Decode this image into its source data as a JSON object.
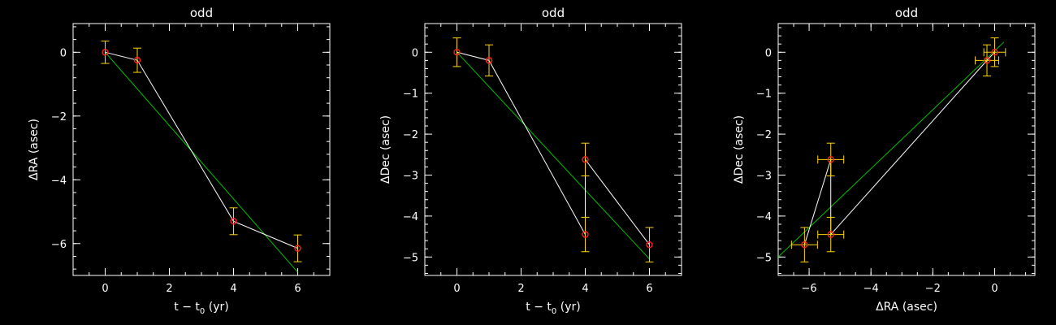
{
  "colors": {
    "background": "#000000",
    "axes": "#ffffff",
    "data_line": "#ffffff",
    "fit_line": "#00c000",
    "errorbar": "#ffd700",
    "marker": "#ff2020"
  },
  "chart_data": [
    {
      "type": "scatter",
      "title": "odd",
      "xlabel": "t − t",
      "xlabel_sub": "0",
      "xlabel_unit": " (yr)",
      "ylabel": "ΔRA (asec)",
      "xlim": [
        -1,
        7
      ],
      "ylim": [
        -7,
        0.9
      ],
      "xticks": [
        0,
        2,
        4,
        6
      ],
      "yticks": [
        0,
        -2,
        -4,
        -6
      ],
      "grid": false,
      "points": [
        {
          "x": 0,
          "y": 0.0,
          "yerr": 0.35
        },
        {
          "x": 1,
          "y": -0.25,
          "yerr": 0.38
        },
        {
          "x": 4,
          "y": -5.3,
          "yerr": 0.42
        },
        {
          "x": 6,
          "y": -6.15,
          "yerr": 0.42
        }
      ],
      "fit": {
        "x": [
          0,
          6
        ],
        "y": [
          0.0,
          -6.9
        ]
      }
    },
    {
      "type": "scatter",
      "title": "odd",
      "xlabel": "t − t",
      "xlabel_sub": "0",
      "xlabel_unit": " (yr)",
      "ylabel": "ΔDec (asec)",
      "xlim": [
        -1,
        7
      ],
      "ylim": [
        -5.45,
        0.7
      ],
      "xticks": [
        0,
        2,
        4,
        6
      ],
      "yticks": [
        0,
        -1,
        -2,
        -3,
        -4,
        -5
      ],
      "grid": false,
      "points": [
        {
          "x": 0,
          "y": 0.0,
          "yerr": 0.35
        },
        {
          "x": 1,
          "y": -0.2,
          "yerr": 0.38
        },
        {
          "x": 4,
          "y": -4.45,
          "yerr": 0.42
        },
        {
          "x": 4,
          "y": -2.62,
          "yerr": 0.4
        },
        {
          "x": 6,
          "y": -4.7,
          "yerr": 0.42
        }
      ],
      "fit": {
        "x": [
          0,
          6
        ],
        "y": [
          0.0,
          -5.05
        ]
      }
    },
    {
      "type": "scatter",
      "title": "odd",
      "xlabel": "ΔRA (asec)",
      "ylabel": "ΔDec (asec)",
      "xlim": [
        -7,
        1.3
      ],
      "ylim": [
        -5.45,
        0.7
      ],
      "xticks": [
        -6,
        -4,
        -2,
        0
      ],
      "yticks": [
        0,
        -1,
        -2,
        -3,
        -4,
        -5
      ],
      "grid": false,
      "points": [
        {
          "x": 0.0,
          "y": 0.0,
          "xerr": 0.35,
          "yerr": 0.35
        },
        {
          "x": -0.25,
          "y": -0.2,
          "xerr": 0.38,
          "yerr": 0.38
        },
        {
          "x": -5.3,
          "y": -4.45,
          "xerr": 0.42,
          "yerr": 0.42
        },
        {
          "x": -5.3,
          "y": -2.62,
          "xerr": 0.42,
          "yerr": 0.4
        },
        {
          "x": -6.15,
          "y": -4.7,
          "xerr": 0.42,
          "yerr": 0.42
        }
      ],
      "fit": {
        "x": [
          -7,
          0.3
        ],
        "y": [
          -5.0,
          0.25
        ]
      }
    }
  ]
}
